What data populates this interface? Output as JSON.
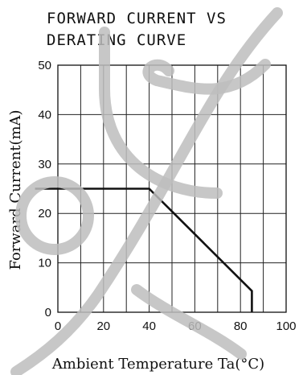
{
  "chart_data": {
    "type": "line",
    "title_lines": [
      "FORWARD CURRENT VS",
      "DERATING CURVE"
    ],
    "xlabel": "Ambient   Temperature   Ta(°C)",
    "ylabel": "Forward   Current(mA)",
    "xlim": [
      0,
      100
    ],
    "ylim": [
      0,
      50
    ],
    "x_ticks": [
      0,
      20,
      40,
      60,
      80,
      100
    ],
    "y_ticks": [
      0,
      10,
      20,
      30,
      40,
      50
    ],
    "grid": true,
    "series": [
      {
        "x": [
          -10,
          40,
          85,
          85
        ],
        "y": [
          25,
          25,
          4.3,
          0
        ]
      }
    ]
  }
}
